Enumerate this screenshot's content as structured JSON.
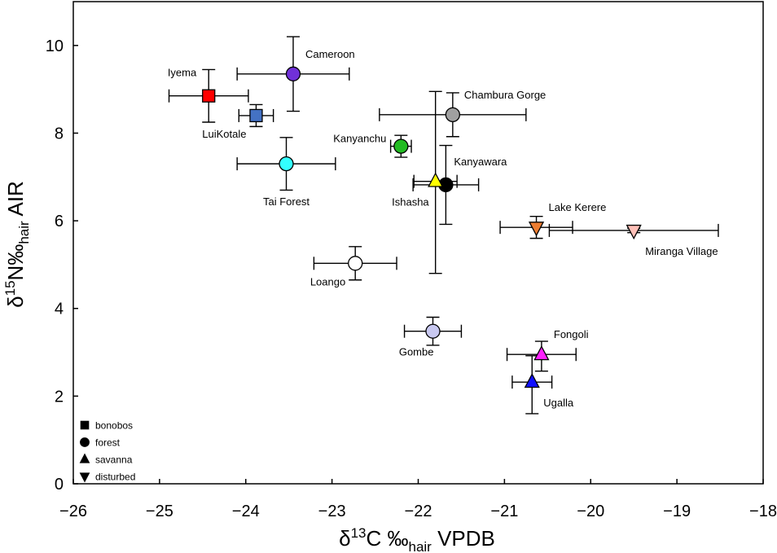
{
  "chart_data": {
    "type": "scatter",
    "xlabel": {
      "base": "δ",
      "sup": "13",
      "mid": "C ‰",
      "sub": "hair",
      "end": " VPDB"
    },
    "ylabel": {
      "base": "δ",
      "sup": "15",
      "mid": "N‰",
      "sub": "hair",
      "end": " AIR"
    },
    "xlim": [
      -26,
      -18
    ],
    "ylim": [
      0,
      11
    ],
    "xticks": [
      -26,
      -25,
      -24,
      -23,
      -22,
      -21,
      -20,
      -19,
      -18
    ],
    "xtick_labels": [
      "−26",
      "−25",
      "−24",
      "−23",
      "−22",
      "−21",
      "−20",
      "−19",
      "−18"
    ],
    "yticks": [
      0,
      2,
      4,
      6,
      8,
      10
    ],
    "ytick_labels": [
      "0",
      "2",
      "4",
      "6",
      "8",
      "10"
    ],
    "grid": false,
    "legend": {
      "placement": "bottom-left",
      "entries": [
        {
          "marker": "square",
          "label": "bonobos"
        },
        {
          "marker": "circle",
          "label": "forest"
        },
        {
          "marker": "triangle",
          "label": "savanna"
        },
        {
          "marker": "triangle-down",
          "label": "disturbed"
        }
      ]
    },
    "points": [
      {
        "label": "Iyema",
        "marker": "square",
        "color": "#ff0000",
        "x": -24.43,
        "y": 8.85,
        "xerr": [
          0.46,
          0.46
        ],
        "yerr": [
          0.6,
          0.6
        ],
        "label_pos": "upper-left"
      },
      {
        "label": "LuiKotale",
        "marker": "square",
        "color": "#4472c4",
        "x": -23.88,
        "y": 8.4,
        "xerr": [
          0.2,
          0.2
        ],
        "yerr": [
          0.25,
          0.25
        ],
        "label_pos": "lower-left"
      },
      {
        "label": "Cameroon",
        "marker": "circle",
        "color": "#7030d8",
        "x": -23.45,
        "y": 9.35,
        "xerr": [
          0.65,
          0.65
        ],
        "yerr": [
          0.85,
          0.85
        ],
        "label_pos": "upper-right"
      },
      {
        "label": "Tai Forest",
        "marker": "circle",
        "color": "#33ffff",
        "x": -23.53,
        "y": 7.3,
        "xerr": [
          0.57,
          0.57
        ],
        "yerr": [
          0.6,
          0.6
        ],
        "label_pos": "below"
      },
      {
        "label": "Kanyanchu",
        "marker": "circle",
        "color": "#22bb22",
        "x": -22.2,
        "y": 7.7,
        "xerr": [
          0.12,
          0.12
        ],
        "yerr": [
          0.25,
          0.25
        ],
        "label_pos": "left"
      },
      {
        "label": "Chambura Gorge",
        "marker": "circle",
        "color": "#a0a0a0",
        "x": -21.6,
        "y": 8.42,
        "xerr": [
          0.85,
          0.85
        ],
        "yerr": [
          0.5,
          0.5
        ],
        "label_pos": "upper-right"
      },
      {
        "label": "Kanyawara",
        "marker": "circle",
        "color": "#000000",
        "x": -21.68,
        "y": 6.82,
        "xerr": [
          0.38,
          0.38
        ],
        "yerr": [
          0.9,
          0.9
        ],
        "label_pos": "upper-right"
      },
      {
        "label": "Ishasha",
        "marker": "triangle",
        "color": "#ffff00",
        "x": -21.8,
        "y": 6.9,
        "xerr": [
          0.25,
          0.25
        ],
        "yerr": [
          2.1,
          2.05
        ],
        "label_pos": "lower-left"
      },
      {
        "label": "Lake Kerere",
        "marker": "triangle-down",
        "color": "#ed7d31",
        "x": -20.63,
        "y": 5.85,
        "xerr": [
          0.42,
          0.42
        ],
        "yerr": [
          0.25,
          0.25
        ],
        "label_pos": "upper-right"
      },
      {
        "label": "Miranga Village",
        "marker": "triangle-down",
        "color": "#ffc0b8",
        "x": -19.5,
        "y": 5.78,
        "xerr": [
          0.98,
          0.98
        ],
        "yerr": [
          0.05,
          0.05
        ],
        "label_pos": "lower-right"
      },
      {
        "label": "Loango",
        "marker": "circle",
        "color": "#ffffff",
        "x": -22.73,
        "y": 5.03,
        "xerr": [
          0.48,
          0.48
        ],
        "yerr": [
          0.38,
          0.38
        ],
        "label_pos": "lower-left"
      },
      {
        "label": "Gombe",
        "marker": "circle",
        "color": "#c8c8f0",
        "x": -21.83,
        "y": 3.48,
        "xerr": [
          0.33,
          0.33
        ],
        "yerr": [
          0.32,
          0.32
        ],
        "label_pos": "lower-left"
      },
      {
        "label": "Fongoli",
        "marker": "triangle",
        "color": "#ff22ff",
        "x": -20.57,
        "y": 2.95,
        "xerr": [
          0.4,
          0.4
        ],
        "yerr": [
          0.38,
          0.3
        ],
        "label_pos": "upper-right"
      },
      {
        "label": "Ugalla",
        "marker": "triangle",
        "color": "#1010ff",
        "x": -20.68,
        "y": 2.32,
        "xerr": [
          0.23,
          0.23
        ],
        "yerr": [
          0.72,
          0.6
        ],
        "label_pos": "lower-right"
      }
    ]
  }
}
